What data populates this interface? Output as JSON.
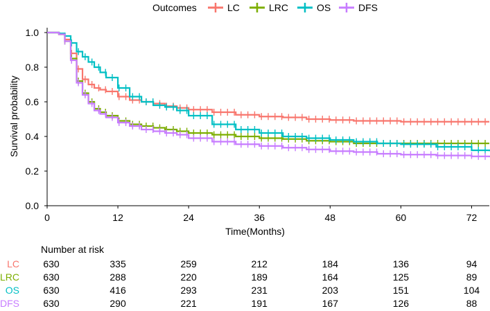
{
  "chart_data": {
    "type": "line",
    "subtype": "kaplan-meier",
    "title": "",
    "xlabel": "Time(Months)",
    "ylabel": "Survival probability",
    "xlim": [
      0,
      75
    ],
    "ylim": [
      0,
      1
    ],
    "x_ticks": [
      0,
      12,
      24,
      36,
      48,
      60,
      72
    ],
    "y_ticks": [
      0.0,
      0.2,
      0.4,
      0.6,
      0.8,
      1.0
    ],
    "y_tick_labels": [
      "0.0",
      "0.2",
      "0.4",
      "0.6",
      "0.8",
      "1.0"
    ],
    "legend": {
      "title": "Outcomes",
      "position": "top",
      "entries": [
        "LC",
        "LRC",
        "OS",
        "DFS"
      ]
    },
    "series": [
      {
        "name": "LC",
        "color": "#F8766D",
        "x": [
          0,
          2,
          3,
          4,
          5,
          6,
          7,
          8,
          9,
          10,
          12,
          14,
          16,
          18,
          20,
          22,
          24,
          28,
          32,
          36,
          40,
          44,
          48,
          52,
          56,
          60,
          66,
          72,
          75
        ],
        "y": [
          1.0,
          0.99,
          0.96,
          0.88,
          0.79,
          0.73,
          0.7,
          0.68,
          0.67,
          0.66,
          0.63,
          0.61,
          0.6,
          0.59,
          0.575,
          0.565,
          0.555,
          0.54,
          0.525,
          0.515,
          0.51,
          0.5,
          0.495,
          0.49,
          0.49,
          0.485,
          0.485,
          0.485,
          0.485
        ]
      },
      {
        "name": "LRC",
        "color": "#7CAE00",
        "x": [
          0,
          2,
          3,
          4,
          5,
          6,
          7,
          8,
          9,
          10,
          12,
          14,
          16,
          18,
          20,
          22,
          24,
          28,
          32,
          36,
          40,
          44,
          48,
          52,
          56,
          60,
          66,
          72,
          75
        ],
        "y": [
          1.0,
          0.99,
          0.95,
          0.85,
          0.72,
          0.65,
          0.6,
          0.56,
          0.54,
          0.52,
          0.49,
          0.47,
          0.46,
          0.45,
          0.44,
          0.43,
          0.42,
          0.41,
          0.4,
          0.39,
          0.385,
          0.375,
          0.37,
          0.36,
          0.36,
          0.36,
          0.36,
          0.36,
          0.36
        ]
      },
      {
        "name": "OS",
        "color": "#00BFC4",
        "x": [
          0,
          2,
          3,
          4,
          5,
          6,
          7,
          8,
          9,
          10,
          12,
          14,
          16,
          18,
          20,
          22,
          24,
          28,
          32,
          36,
          40,
          44,
          48,
          52,
          56,
          60,
          66,
          72,
          75
        ],
        "y": [
          1.0,
          0.995,
          0.98,
          0.94,
          0.89,
          0.86,
          0.83,
          0.8,
          0.77,
          0.74,
          0.68,
          0.63,
          0.6,
          0.58,
          0.57,
          0.55,
          0.52,
          0.47,
          0.44,
          0.42,
          0.4,
          0.39,
          0.38,
          0.37,
          0.36,
          0.355,
          0.34,
          0.32,
          0.315
        ]
      },
      {
        "name": "DFS",
        "color": "#C77CFF",
        "x": [
          0,
          2,
          3,
          4,
          5,
          6,
          7,
          8,
          9,
          10,
          12,
          14,
          16,
          18,
          20,
          22,
          24,
          28,
          32,
          36,
          40,
          44,
          48,
          52,
          56,
          60,
          66,
          72,
          75
        ],
        "y": [
          1.0,
          0.99,
          0.95,
          0.84,
          0.71,
          0.64,
          0.59,
          0.55,
          0.53,
          0.51,
          0.48,
          0.46,
          0.44,
          0.43,
          0.42,
          0.41,
          0.39,
          0.37,
          0.355,
          0.345,
          0.335,
          0.325,
          0.315,
          0.31,
          0.3,
          0.295,
          0.29,
          0.285,
          0.28
        ]
      }
    ],
    "risk_table": {
      "title": "Number at risk",
      "times": [
        0,
        12,
        24,
        36,
        48,
        60,
        72
      ],
      "rows": [
        {
          "name": "LC",
          "color": "#F8766D",
          "values": [
            "630",
            "335",
            "259",
            "212",
            "184",
            "136",
            "94"
          ]
        },
        {
          "name": "LRC",
          "color": "#7CAE00",
          "values": [
            "630",
            "288",
            "220",
            "189",
            "164",
            "125",
            "89"
          ]
        },
        {
          "name": "OS",
          "color": "#00BFC4",
          "values": [
            "630",
            "416",
            "293",
            "231",
            "203",
            "151",
            "104"
          ]
        },
        {
          "name": "DFS",
          "color": "#C77CFF",
          "values": [
            "630",
            "290",
            "221",
            "191",
            "167",
            "126",
            "88"
          ]
        }
      ]
    }
  }
}
